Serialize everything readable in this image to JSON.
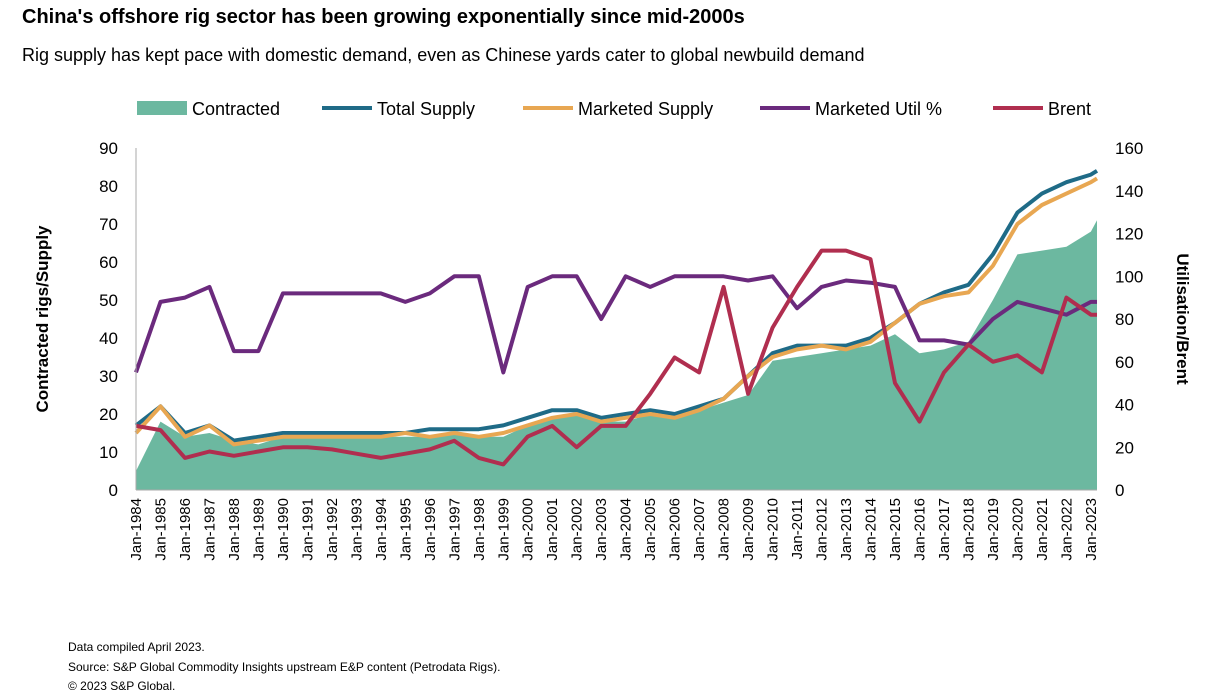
{
  "title": "China's offshore rig sector has been growing exponentially since mid-2000s",
  "subtitle": "Rig supply has kept pace with domestic demand, even as Chinese yards cater to global newbuild demand",
  "footnotes": [
    "Data compiled April 2023.",
    "Source: S&P Global Commodity Insights upstream E&P content (Petrodata Rigs).",
    "© 2023 S&P Global."
  ],
  "chart_data": {
    "type": "line",
    "ylabel": "Contracted rigs/Supply",
    "y2label": "Utilisation/Brent",
    "ylim": [
      0,
      90
    ],
    "y2lim": [
      0,
      160
    ],
    "yticks": [
      0,
      10,
      20,
      30,
      40,
      50,
      60,
      70,
      80,
      90
    ],
    "y2ticks": [
      0,
      20,
      40,
      60,
      80,
      100,
      120,
      140,
      160
    ],
    "xticks": [
      "Jan-1984",
      "Jan-1985",
      "Jan-1986",
      "Jan-1987",
      "Jan-1988",
      "Jan-1989",
      "Jan-1990",
      "Jan-1991",
      "Jan-1992",
      "Jan-1993",
      "Jan-1994",
      "Jan-1995",
      "Jan-1996",
      "Jan-1997",
      "Jan-1998",
      "Jan-1999",
      "Jan-2000",
      "Jan-2001",
      "Jan-2002",
      "Jan-2003",
      "Jan-2004",
      "Jan-2005",
      "Jan-2006",
      "Jan-2007",
      "Jan-2008",
      "Jan-2009",
      "Jan-2010",
      "Jan-2011",
      "Jan-2012",
      "Jan-2013",
      "Jan-2014",
      "Jan-2015",
      "Jan-2016",
      "Jan-2017",
      "Jan-2018",
      "Jan-2019",
      "Jan-2020",
      "Jan-2021",
      "Jan-2022",
      "Jan-2023"
    ],
    "legend_position": "top",
    "grid": false,
    "x": [
      "1984-01",
      "1985-01",
      "1986-01",
      "1987-01",
      "1988-01",
      "1989-01",
      "1990-01",
      "1991-01",
      "1992-01",
      "1993-01",
      "1994-01",
      "1995-01",
      "1996-01",
      "1997-01",
      "1998-01",
      "1999-01",
      "2000-01",
      "2001-01",
      "2002-01",
      "2003-01",
      "2004-01",
      "2005-01",
      "2006-01",
      "2007-01",
      "2008-01",
      "2009-01",
      "2010-01",
      "2011-01",
      "2012-01",
      "2013-01",
      "2014-01",
      "2015-01",
      "2016-01",
      "2017-01",
      "2018-01",
      "2019-01",
      "2020-01",
      "2021-01",
      "2022-01",
      "2023-01",
      "2023-04"
    ],
    "series": [
      {
        "name": "Contracted",
        "type": "area",
        "axis": "left",
        "color": "#6cb8a0",
        "values": [
          5,
          18,
          14,
          15,
          13,
          12,
          14,
          14,
          14,
          14,
          14,
          14,
          14,
          15,
          14,
          14,
          17,
          19,
          20,
          18,
          18,
          20,
          20,
          21,
          23,
          25,
          34,
          35,
          36,
          37,
          38,
          41,
          36,
          37,
          39,
          50,
          62,
          63,
          64,
          68,
          71
        ]
      },
      {
        "name": "Total Supply",
        "type": "line",
        "axis": "left",
        "color": "#1f6b87",
        "values": [
          17,
          22,
          15,
          17,
          13,
          14,
          15,
          15,
          15,
          15,
          15,
          15,
          16,
          16,
          16,
          17,
          19,
          21,
          21,
          19,
          20,
          21,
          20,
          22,
          24,
          30,
          36,
          38,
          38,
          38,
          40,
          44,
          49,
          52,
          54,
          62,
          73,
          78,
          81,
          83,
          84
        ]
      },
      {
        "name": "Marketed Supply",
        "type": "line",
        "axis": "left",
        "color": "#e8a752",
        "values": [
          15,
          22,
          14,
          17,
          12,
          13,
          14,
          14,
          14,
          14,
          14,
          15,
          14,
          15,
          14,
          15,
          17,
          19,
          20,
          18,
          19,
          20,
          19,
          21,
          24,
          30,
          35,
          37,
          38,
          37,
          39,
          44,
          49,
          51,
          52,
          59,
          70,
          75,
          78,
          81,
          82
        ]
      },
      {
        "name": "Marketed Util %",
        "type": "line",
        "axis": "right",
        "color": "#6b2a7d",
        "values": [
          55,
          88,
          90,
          95,
          65,
          65,
          92,
          92,
          92,
          92,
          92,
          88,
          92,
          100,
          100,
          55,
          95,
          100,
          100,
          80,
          100,
          95,
          100,
          100,
          100,
          98,
          100,
          85,
          95,
          98,
          97,
          95,
          70,
          70,
          68,
          80,
          88,
          85,
          82,
          88,
          88
        ]
      },
      {
        "name": "Brent",
        "type": "line",
        "axis": "right",
        "color": "#b02e4f",
        "values": [
          30,
          28,
          15,
          18,
          16,
          18,
          20,
          20,
          19,
          17,
          15,
          17,
          19,
          23,
          15,
          12,
          25,
          30,
          20,
          30,
          30,
          45,
          62,
          55,
          95,
          45,
          76,
          95,
          112,
          112,
          108,
          50,
          32,
          55,
          68,
          60,
          63,
          55,
          90,
          82,
          82
        ]
      }
    ]
  }
}
